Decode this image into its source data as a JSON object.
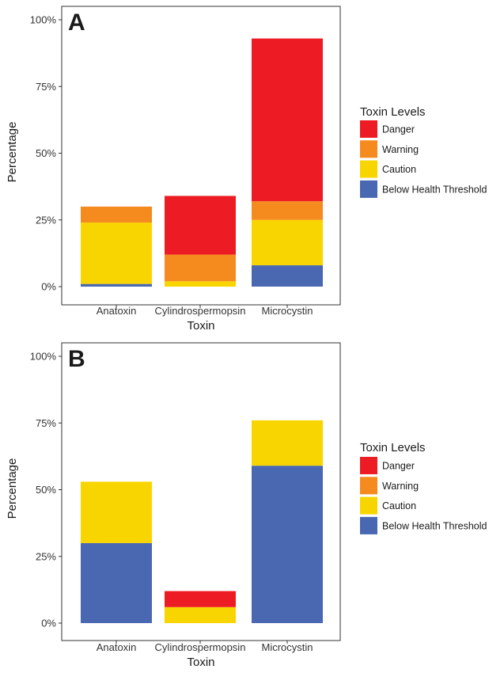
{
  "colors": {
    "Danger": "#ed1c24",
    "Warning": "#f58a1f",
    "Caution": "#f9d500",
    "Below Health Threshold": "#4a68b2"
  },
  "chart_data": [
    {
      "type": "bar",
      "stacked": true,
      "panel_label": "A",
      "categories": [
        "Anatoxin",
        "Cylindrospermopsin",
        "Microcystin"
      ],
      "xlabel": "Toxin",
      "ylabel": "Percentage",
      "ylim": [
        0,
        100
      ],
      "yticks": [
        "0%",
        "25%",
        "50%",
        "75%",
        "100%"
      ],
      "legend_title": "Toxin Levels",
      "legend_position": "right",
      "legend_entries": [
        "Danger",
        "Warning",
        "Caution",
        "Below Health Threshold"
      ],
      "series": [
        {
          "name": "Below Health Threshold",
          "values": [
            1,
            0,
            8
          ]
        },
        {
          "name": "Caution",
          "values": [
            23,
            2,
            17
          ]
        },
        {
          "name": "Warning",
          "values": [
            6,
            10,
            7
          ]
        },
        {
          "name": "Danger",
          "values": [
            0,
            22,
            61
          ]
        }
      ]
    },
    {
      "type": "bar",
      "stacked": true,
      "panel_label": "B",
      "categories": [
        "Anatoxin",
        "Cylindrospermopsin",
        "Microcystin"
      ],
      "xlabel": "Toxin",
      "ylabel": "Percentage",
      "ylim": [
        0,
        100
      ],
      "yticks": [
        "0%",
        "25%",
        "50%",
        "75%",
        "100%"
      ],
      "legend_title": "Toxin Levels",
      "legend_position": "right",
      "legend_entries": [
        "Danger",
        "Warning",
        "Caution",
        "Below Health Threshold"
      ],
      "series": [
        {
          "name": "Below Health Threshold",
          "values": [
            30,
            0,
            59
          ]
        },
        {
          "name": "Caution",
          "values": [
            23,
            6,
            17
          ]
        },
        {
          "name": "Warning",
          "values": [
            0,
            0,
            0
          ]
        },
        {
          "name": "Danger",
          "values": [
            0,
            6,
            0
          ]
        }
      ]
    }
  ]
}
